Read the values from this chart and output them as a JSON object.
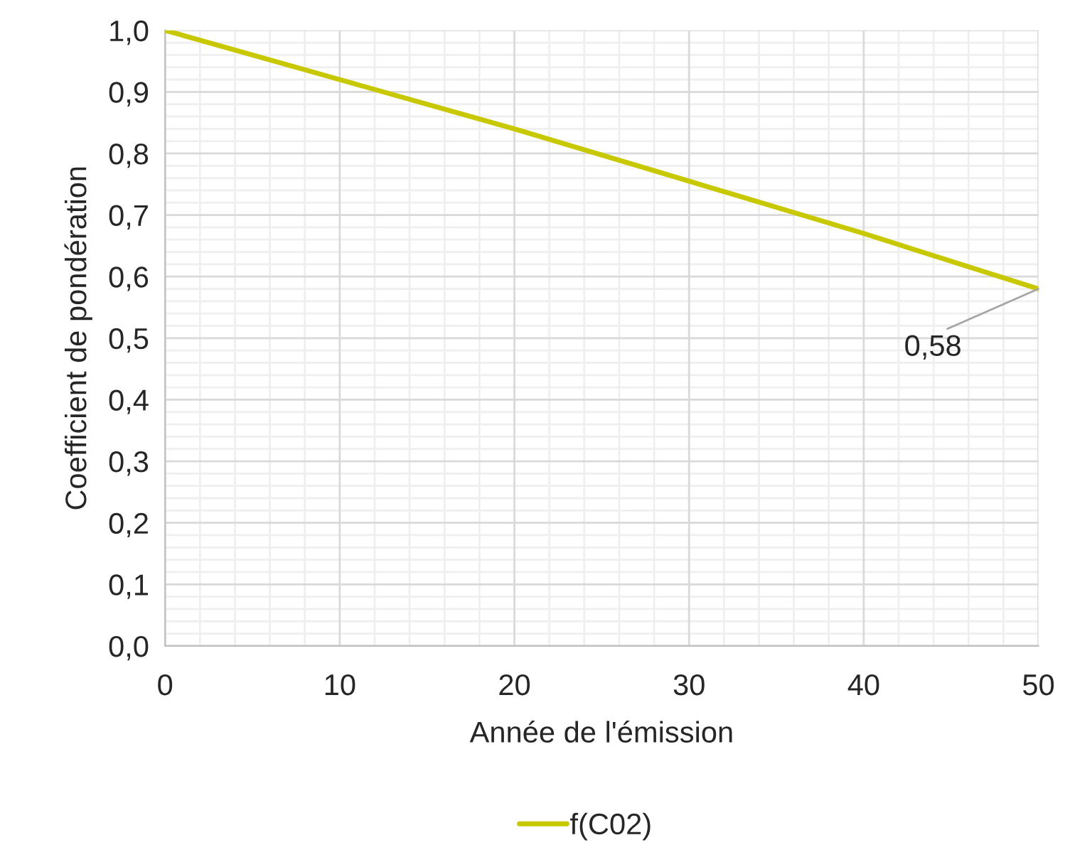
{
  "chart_data": {
    "type": "line",
    "xlabel": "Année de l'émission",
    "ylabel": "Coefficient de pondération",
    "x": [
      0,
      10,
      20,
      30,
      40,
      50
    ],
    "series": [
      {
        "name": "f(C02)",
        "color": "#c8c800",
        "values": [
          1.0,
          0.92,
          0.84,
          0.755,
          0.67,
          0.58
        ]
      }
    ],
    "annotations": [
      {
        "text": "0,58",
        "x": 50,
        "y": 0.58
      }
    ],
    "xlim": [
      0,
      50
    ],
    "xticks": [
      0,
      10,
      20,
      30,
      40,
      50
    ],
    "ylim": [
      0,
      1.0
    ],
    "yticks": [
      {
        "value": 0,
        "label": "0,0"
      },
      {
        "value": 0.1,
        "label": "0,1"
      },
      {
        "value": 0.2,
        "label": "0,2"
      },
      {
        "value": 0.3,
        "label": "0,3"
      },
      {
        "value": 0.4,
        "label": "0,4"
      },
      {
        "value": 0.5,
        "label": "0,5"
      },
      {
        "value": 0.6,
        "label": "0,6"
      },
      {
        "value": 0.7,
        "label": "0,7"
      },
      {
        "value": 0.8,
        "label": "0,8"
      },
      {
        "value": 0.9,
        "label": "0,9"
      },
      {
        "value": 1.0,
        "label": "1,0"
      }
    ],
    "grid": true,
    "legend": "bottom",
    "marker": "none",
    "line_style": "solid"
  }
}
